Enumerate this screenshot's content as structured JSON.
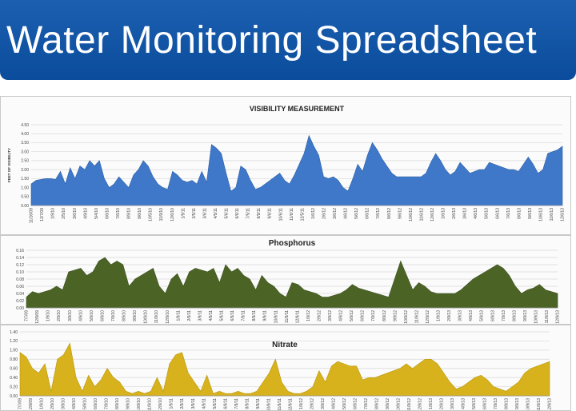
{
  "header": {
    "title": "Water Monitoring Spreadsheet"
  },
  "colors": {
    "banner": "#0b4c9c",
    "visibility": "#3f78c8",
    "phosphorus": "#4b6426",
    "nitrate": "#d7b21c"
  },
  "chart_data": [
    {
      "type": "area",
      "title": "VISIBILITY MEASUREMENT",
      "ylabel": "FEET OF VISIBILITY",
      "ylim": [
        0,
        4.5
      ],
      "yticks": [
        "0.00",
        "0.50",
        "1.00",
        "1.50",
        "2.00",
        "2.50",
        "3.00",
        "3.50",
        "4.00",
        "4.50"
      ],
      "xticks": [
        "11/16/09",
        "12/7/09",
        "1/9/10",
        "2/5/10",
        "3/6/10",
        "4/9/10",
        "5/4/10",
        "6/6/10",
        "7/6/10",
        "8/9/10",
        "9/6/10",
        "10/5/10",
        "11/9/10",
        "12/6/10",
        "1/9/11",
        "2/5/11",
        "3/6/11",
        "4/5/11",
        "5/6/11",
        "6/6/11",
        "7/5/11",
        "8/9/11",
        "9/6/11",
        "10/6/11",
        "11/6/11",
        "12/5/11",
        "1/6/12",
        "2/6/12",
        "3/6/12",
        "4/6/12",
        "5/6/12",
        "6/6/12",
        "7/6/12",
        "8/6/12",
        "9/6/12",
        "10/6/12",
        "11/6/12",
        "12/6/12",
        "1/6/13",
        "2/6/13",
        "3/6/13",
        "4/6/13",
        "5/6/13",
        "6/6/13",
        "7/6/13",
        "8/6/13",
        "9/6/13",
        "10/6/13",
        "11/6/13",
        "12/6/13"
      ],
      "values": [
        1.2,
        1.4,
        1.45,
        1.5,
        1.5,
        1.45,
        1.9,
        1.2,
        2.1,
        1.5,
        2.2,
        2.0,
        2.5,
        2.2,
        2.5,
        1.5,
        1.0,
        1.2,
        1.6,
        1.3,
        1.0,
        1.7,
        2.0,
        2.5,
        2.2,
        1.6,
        1.2,
        1.0,
        0.9,
        1.9,
        1.7,
        1.4,
        1.3,
        1.4,
        1.2,
        1.9,
        1.3,
        3.4,
        3.2,
        2.9,
        1.8,
        0.8,
        1.0,
        2.2,
        2.0,
        1.4,
        0.9,
        1.0,
        1.2,
        1.4,
        1.6,
        1.8,
        1.4,
        1.2,
        1.7,
        2.3,
        2.9,
        3.9,
        3.3,
        2.8,
        1.6,
        1.5,
        1.6,
        1.4,
        1.0,
        0.8,
        1.5,
        2.3,
        1.9,
        2.8,
        3.5,
        3.1,
        2.6,
        2.2,
        1.8,
        1.6,
        1.6,
        1.6,
        1.6,
        1.6,
        1.6,
        1.8,
        2.4,
        2.9,
        2.5,
        2.0,
        1.7,
        1.9,
        2.4,
        2.1,
        1.8,
        1.9,
        2.0,
        2.0,
        2.4,
        2.3,
        2.2,
        2.1,
        2.0,
        2.0,
        1.9,
        2.3,
        2.7,
        2.3,
        1.8,
        2.0,
        2.9,
        3.0,
        3.1,
        3.3
      ]
    },
    {
      "type": "area",
      "title": "Phosphorus",
      "ylim": [
        0,
        0.16
      ],
      "yticks": [
        "0.00",
        "0.02",
        "0.04",
        "0.06",
        "0.08",
        "0.10",
        "0.12",
        "0.14",
        "0.16"
      ],
      "xticks": [
        "7/7/09",
        "12/9/09",
        "1/9/10",
        "2/9/10",
        "3/9/10",
        "4/9/10",
        "5/9/10",
        "6/9/10",
        "7/9/10",
        "8/9/10",
        "9/9/10",
        "10/9/10",
        "11/9/10",
        "12/9/10",
        "1/9/11",
        "2/9/11",
        "3/9/11",
        "4/9/11",
        "5/9/11",
        "6/9/11",
        "7/9/11",
        "8/9/11",
        "9/9/11",
        "10/9/11",
        "11/9/11",
        "12/9/11",
        "1/9/12",
        "2/9/12",
        "3/9/12",
        "4/9/12",
        "5/9/12",
        "6/9/12",
        "7/9/12",
        "8/9/12",
        "9/9/12",
        "10/9/12",
        "11/9/12",
        "12/9/12",
        "1/9/13",
        "2/9/13",
        "3/9/13",
        "4/9/13",
        "5/9/13",
        "6/9/13",
        "7/9/13",
        "8/9/13",
        "9/9/13",
        "10/9/13",
        "11/9/13",
        "12/9/13"
      ],
      "values": [
        0.03,
        0.045,
        0.04,
        0.045,
        0.05,
        0.06,
        0.05,
        0.1,
        0.105,
        0.11,
        0.09,
        0.1,
        0.13,
        0.14,
        0.12,
        0.13,
        0.12,
        0.06,
        0.08,
        0.09,
        0.1,
        0.11,
        0.06,
        0.04,
        0.08,
        0.095,
        0.06,
        0.1,
        0.11,
        0.105,
        0.1,
        0.11,
        0.07,
        0.12,
        0.1,
        0.11,
        0.09,
        0.08,
        0.05,
        0.09,
        0.07,
        0.06,
        0.04,
        0.03,
        0.07,
        0.065,
        0.05,
        0.045,
        0.04,
        0.03,
        0.03,
        0.035,
        0.04,
        0.05,
        0.065,
        0.055,
        0.05,
        0.045,
        0.04,
        0.035,
        0.03,
        0.08,
        0.13,
        0.09,
        0.05,
        0.07,
        0.06,
        0.045,
        0.04,
        0.04,
        0.04,
        0.04,
        0.05,
        0.065,
        0.08,
        0.09,
        0.1,
        0.11,
        0.12,
        0.11,
        0.09,
        0.06,
        0.04,
        0.05,
        0.055,
        0.065,
        0.05,
        0.045,
        0.04
      ]
    },
    {
      "type": "area",
      "title": "Nitrate",
      "ylim": [
        0,
        1.4
      ],
      "yticks": [
        "0.00",
        "0.20",
        "0.40",
        "0.60",
        "0.80",
        "1.00",
        "1.20",
        "1.40"
      ],
      "xticks": [
        "7/7/09",
        "12/9/09",
        "1/9/10",
        "2/9/10",
        "3/9/10",
        "4/9/10",
        "5/9/10",
        "6/9/10",
        "7/9/10",
        "8/9/10",
        "9/9/10",
        "10/9/10",
        "11/9/10",
        "12/9/10",
        "1/9/11",
        "2/9/11",
        "3/9/11",
        "4/9/11",
        "5/9/11",
        "6/9/11",
        "7/9/11",
        "8/9/11",
        "9/9/11",
        "10/9/11",
        "11/9/11",
        "12/9/11",
        "1/9/12",
        "2/9/12",
        "3/9/12",
        "4/9/12",
        "5/9/12",
        "6/9/12",
        "7/9/12",
        "8/9/12",
        "9/9/12",
        "10/9/12",
        "11/9/12",
        "12/9/12",
        "1/9/13",
        "2/9/13",
        "3/9/13",
        "4/9/13",
        "5/9/13",
        "6/9/13",
        "7/9/13",
        "8/9/13",
        "9/9/13",
        "10/9/13",
        "11/9/13",
        "12/9/13"
      ],
      "values": [
        0.95,
        0.85,
        0.6,
        0.5,
        0.7,
        0.1,
        0.8,
        0.9,
        1.15,
        0.4,
        0.1,
        0.45,
        0.2,
        0.35,
        0.6,
        0.4,
        0.3,
        0.1,
        0.05,
        0.1,
        0.05,
        0.1,
        0.4,
        0.1,
        0.7,
        0.9,
        0.95,
        0.5,
        0.3,
        0.1,
        0.45,
        0.05,
        0.1,
        0.05,
        0.05,
        0.1,
        0.05,
        0.05,
        0.1,
        0.3,
        0.5,
        0.8,
        0.3,
        0.1,
        0.05,
        0.05,
        0.1,
        0.2,
        0.55,
        0.3,
        0.65,
        0.75,
        0.7,
        0.65,
        0.65,
        0.35,
        0.4,
        0.4,
        0.45,
        0.5,
        0.55,
        0.6,
        0.7,
        0.6,
        0.7,
        0.8,
        0.8,
        0.7,
        0.5,
        0.3,
        0.15,
        0.2,
        0.3,
        0.4,
        0.45,
        0.35,
        0.2,
        0.15,
        0.1,
        0.2,
        0.3,
        0.5,
        0.6,
        0.65,
        0.7,
        0.75
      ]
    }
  ]
}
